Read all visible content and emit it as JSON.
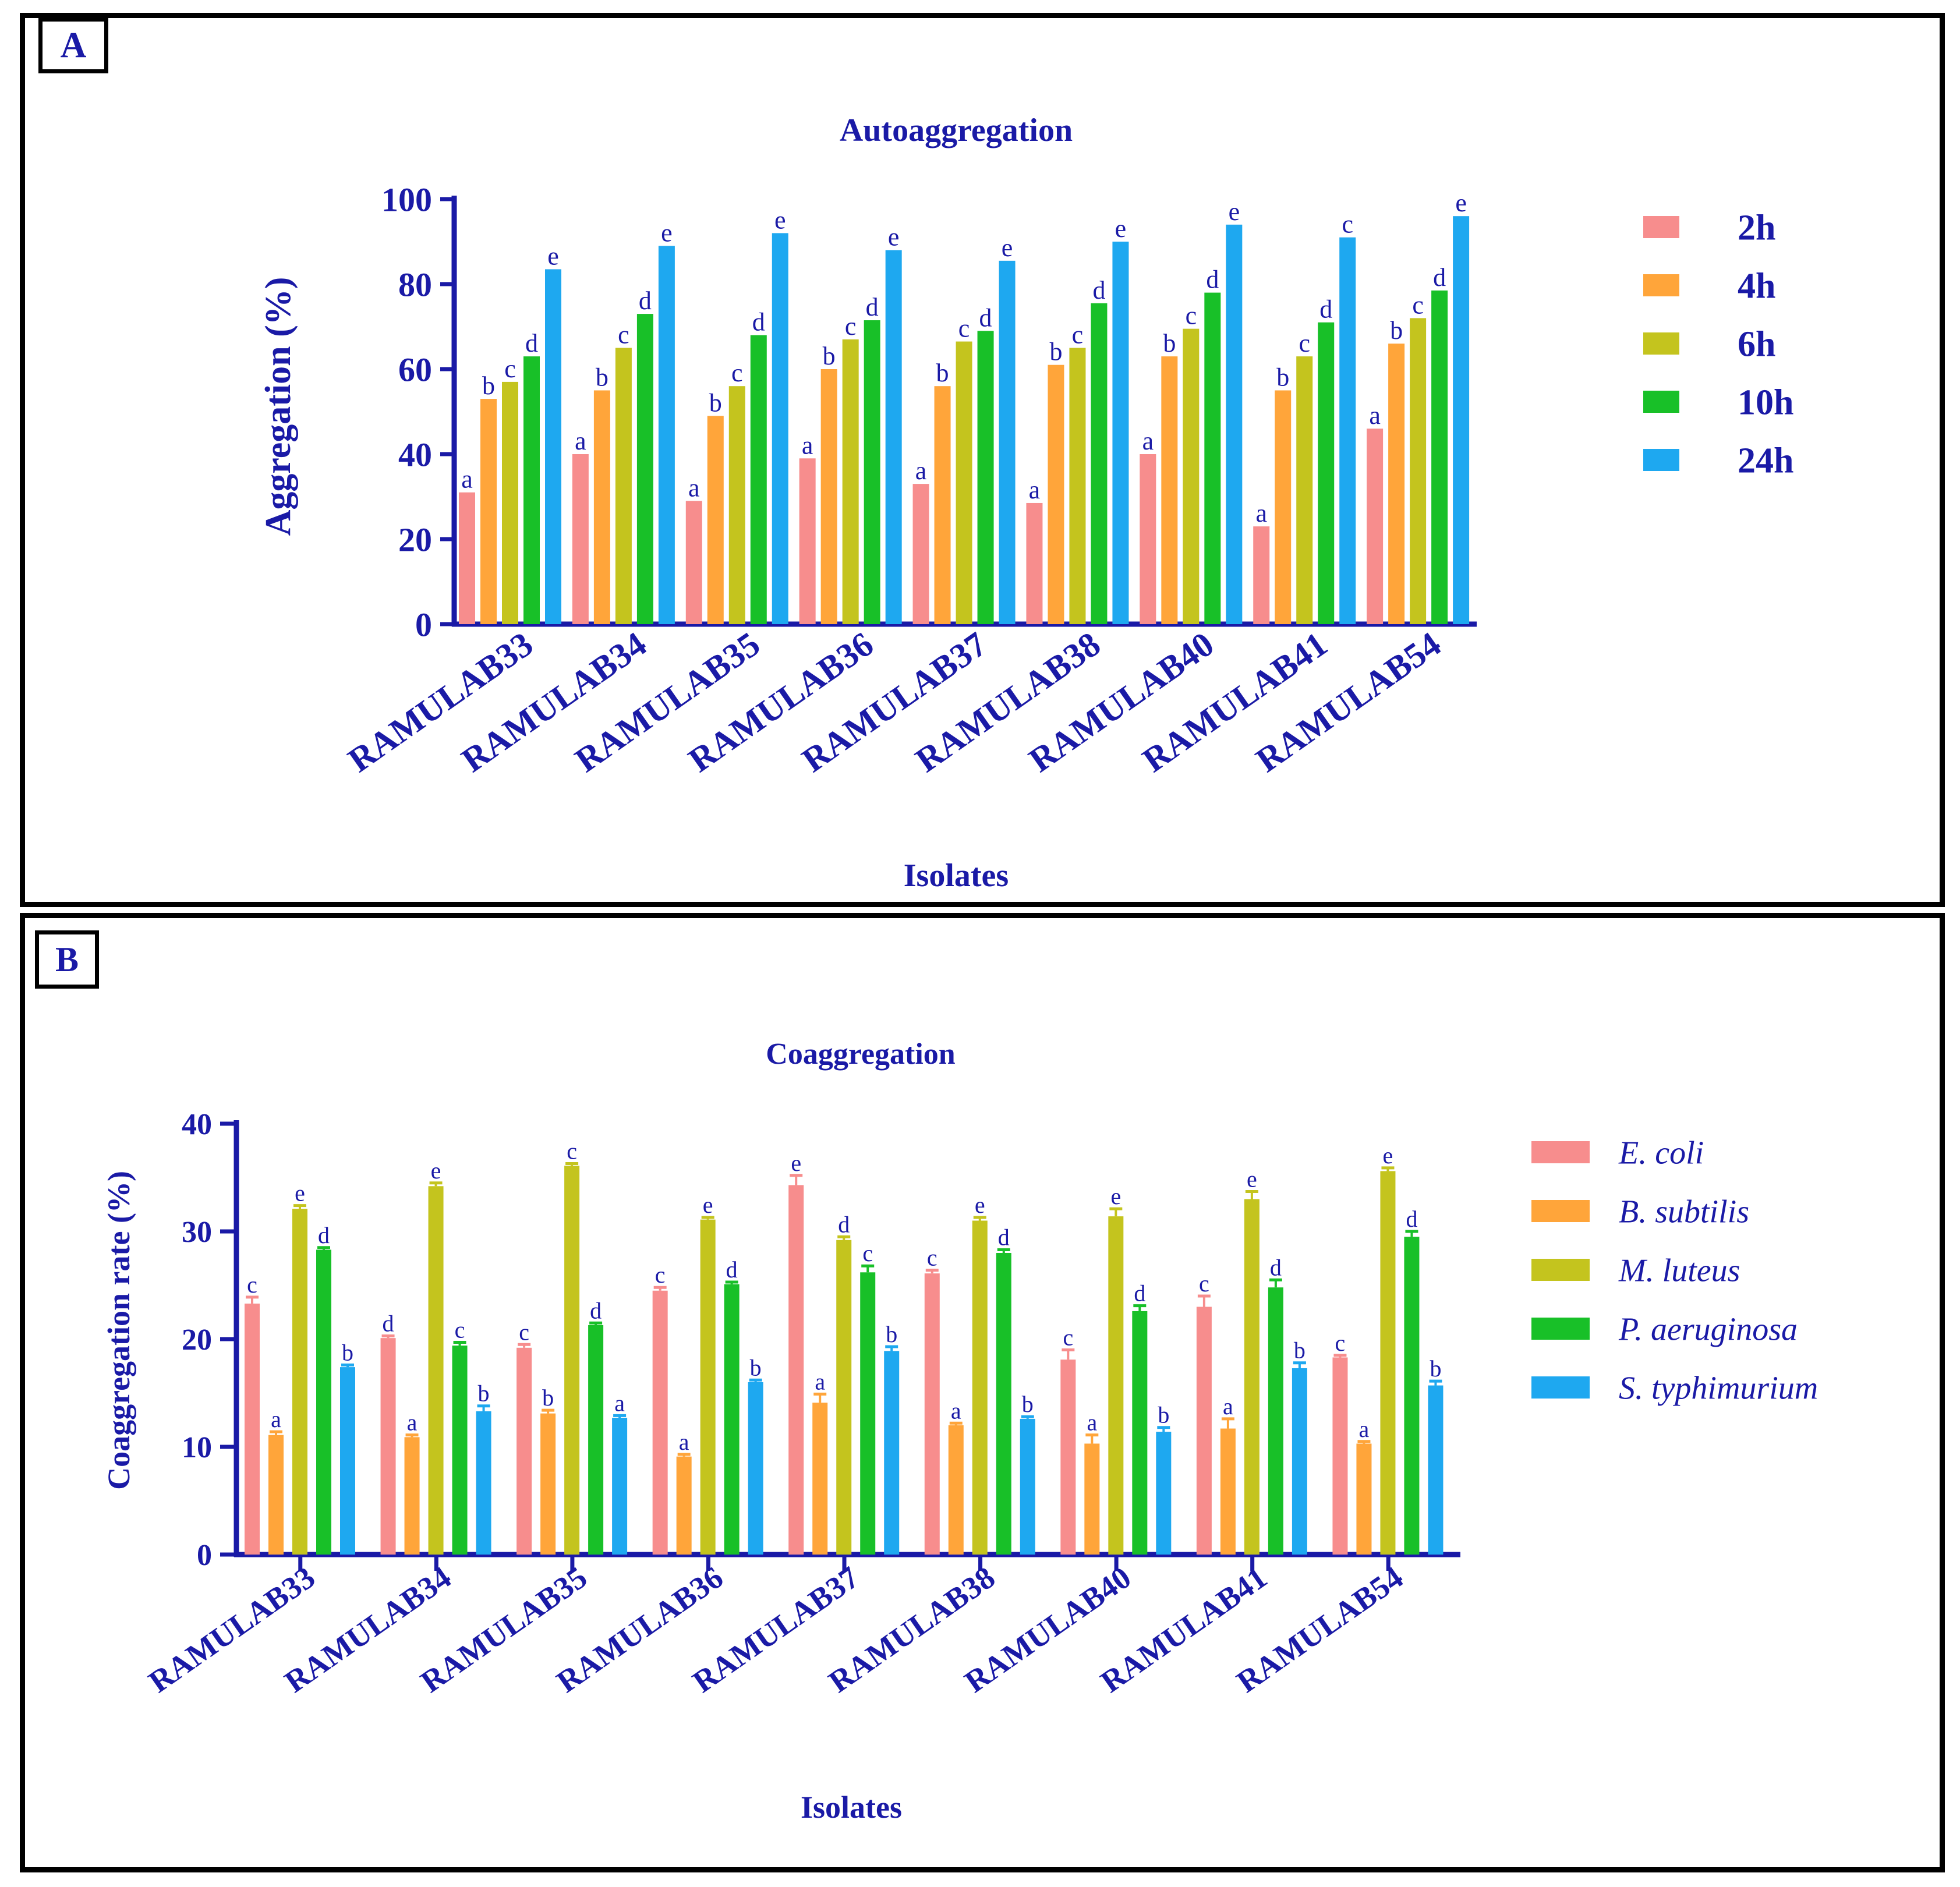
{
  "panels": {
    "a_label": "A",
    "b_label": "B"
  },
  "chart_data": [
    {
      "type": "bar",
      "title": "Autoaggregation",
      "xlabel": "Isolates",
      "ylabel": "Aggregation (%)",
      "ylim": [
        0,
        100
      ],
      "yticks": [
        0,
        20,
        40,
        60,
        80,
        100
      ],
      "legend_position": "right",
      "categories": [
        "RAMULAB33",
        "RAMULAB34",
        "RAMULAB35",
        "RAMULAB36",
        "RAMULAB37",
        "RAMULAB38",
        "RAMULAB40",
        "RAMULAB41",
        "RAMULAB54"
      ],
      "series": [
        {
          "name": "2h",
          "color": "#f78d8d",
          "values": [
            31,
            40,
            29,
            39,
            33,
            28.5,
            40,
            23,
            46
          ],
          "letters": [
            "a",
            "a",
            "a",
            "a",
            "a",
            "a",
            "a",
            "a",
            "a"
          ]
        },
        {
          "name": "4h",
          "color": "#ffa53a",
          "values": [
            53,
            55,
            49,
            60,
            56,
            61,
            63,
            55,
            66
          ],
          "letters": [
            "b",
            "b",
            "b",
            "b",
            "b",
            "b",
            "b",
            "b",
            "b"
          ]
        },
        {
          "name": "6h",
          "color": "#c4c41e",
          "values": [
            57,
            65,
            56,
            67,
            66.5,
            65,
            69.5,
            63,
            72
          ],
          "letters": [
            "c",
            "c",
            "c",
            "c",
            "c",
            "c",
            "c",
            "c",
            "c"
          ]
        },
        {
          "name": "10h",
          "color": "#18c028",
          "values": [
            63,
            73,
            68,
            71.5,
            69,
            75.5,
            78,
            71,
            78.5
          ],
          "letters": [
            "d",
            "d",
            "d",
            "d",
            "d",
            "d",
            "d",
            "d",
            "d"
          ]
        },
        {
          "name": "24h",
          "color": "#1ea8f0",
          "values": [
            83.5,
            89,
            92,
            88,
            85.5,
            90,
            94,
            91,
            96
          ],
          "letters": [
            "e",
            "e",
            "e",
            "e",
            "e",
            "e",
            "e",
            "c",
            "e"
          ]
        }
      ]
    },
    {
      "type": "bar",
      "title": "Coaggregation",
      "xlabel": "Isolates",
      "ylabel": "Coaggregation rate (%)",
      "ylim": [
        0,
        40
      ],
      "yticks": [
        0,
        10,
        20,
        30,
        40
      ],
      "legend_position": "right",
      "categories": [
        "RAMULAB33",
        "RAMULAB34",
        "RAMULAB35",
        "RAMULAB36",
        "RAMULAB37",
        "RAMULAB38",
        "RAMULAB40",
        "RAMULAB41",
        "RAMULAB54"
      ],
      "series": [
        {
          "name": "E. coli",
          "color": "#f78d8d",
          "values": [
            23.3,
            20.1,
            19.2,
            24.5,
            34.3,
            26.1,
            18.1,
            23.0,
            18.3
          ],
          "errors": [
            0.6,
            0.2,
            0.3,
            0.3,
            0.9,
            0.3,
            0.9,
            1.0,
            0.2
          ],
          "letters": [
            "c",
            "d",
            "c",
            "c",
            "e",
            "c",
            "c",
            "c",
            "c"
          ]
        },
        {
          "name": "B. subtilis",
          "color": "#ffa53a",
          "values": [
            11.1,
            10.9,
            13.1,
            9.1,
            14.1,
            12.0,
            10.3,
            11.7,
            10.3
          ],
          "errors": [
            0.3,
            0.2,
            0.3,
            0.2,
            0.8,
            0.2,
            0.8,
            0.9,
            0.2
          ],
          "letters": [
            "a",
            "a",
            "b",
            "a",
            "a",
            "a",
            "a",
            "a",
            "a"
          ]
        },
        {
          "name": "M. luteus",
          "color": "#c4c41e",
          "values": [
            32.1,
            34.2,
            36.1,
            31.1,
            29.2,
            31.0,
            31.4,
            33.0,
            35.6
          ],
          "errors": [
            0.3,
            0.3,
            0.2,
            0.2,
            0.3,
            0.3,
            0.7,
            0.7,
            0.3
          ],
          "letters": [
            "e",
            "e",
            "c",
            "e",
            "d",
            "e",
            "e",
            "e",
            "e"
          ]
        },
        {
          "name": "P. aeruginosa",
          "color": "#18c028",
          "values": [
            28.3,
            19.4,
            21.3,
            25.1,
            26.2,
            28.0,
            22.6,
            24.8,
            29.5
          ],
          "errors": [
            0.2,
            0.3,
            0.2,
            0.2,
            0.6,
            0.3,
            0.5,
            0.7,
            0.5
          ],
          "letters": [
            "d",
            "c",
            "d",
            "d",
            "c",
            "d",
            "d",
            "d",
            "d"
          ]
        },
        {
          "name": "S. typhimurium",
          "color": "#1ea8f0",
          "values": [
            17.4,
            13.3,
            12.7,
            16.0,
            18.9,
            12.6,
            11.4,
            17.3,
            15.7
          ],
          "errors": [
            0.2,
            0.5,
            0.2,
            0.2,
            0.4,
            0.2,
            0.4,
            0.5,
            0.4
          ],
          "letters": [
            "b",
            "b",
            "a",
            "b",
            "b",
            "b",
            "b",
            "b",
            "b"
          ]
        }
      ]
    }
  ]
}
